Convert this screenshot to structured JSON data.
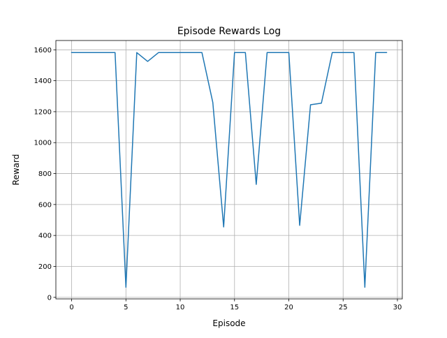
{
  "chart_data": {
    "type": "line",
    "title": "Episode Rewards Log",
    "xlabel": "Episode",
    "ylabel": "Reward",
    "xlim": [
      -1.45,
      30.45
    ],
    "ylim": [
      -10,
      1660
    ],
    "xticks": [
      0,
      5,
      10,
      15,
      20,
      25,
      30
    ],
    "yticks": [
      0,
      200,
      400,
      600,
      800,
      1000,
      1200,
      1400,
      1600
    ],
    "grid": true,
    "line_color": "#1f77b4",
    "series": [
      {
        "x": [
          0,
          1,
          2,
          3,
          4,
          5,
          6,
          7,
          8,
          9,
          10,
          11,
          12,
          13,
          14,
          15,
          16,
          17,
          18,
          19,
          20,
          21,
          22,
          23,
          24,
          25,
          26,
          27,
          28,
          29
        ],
        "values": [
          1582,
          1582,
          1582,
          1582,
          1582,
          65,
          1582,
          1525,
          1582,
          1582,
          1582,
          1582,
          1582,
          1260,
          455,
          1582,
          1582,
          730,
          1582,
          1582,
          1582,
          465,
          1245,
          1255,
          1582,
          1582,
          1582,
          65,
          1582,
          1582
        ]
      }
    ]
  }
}
